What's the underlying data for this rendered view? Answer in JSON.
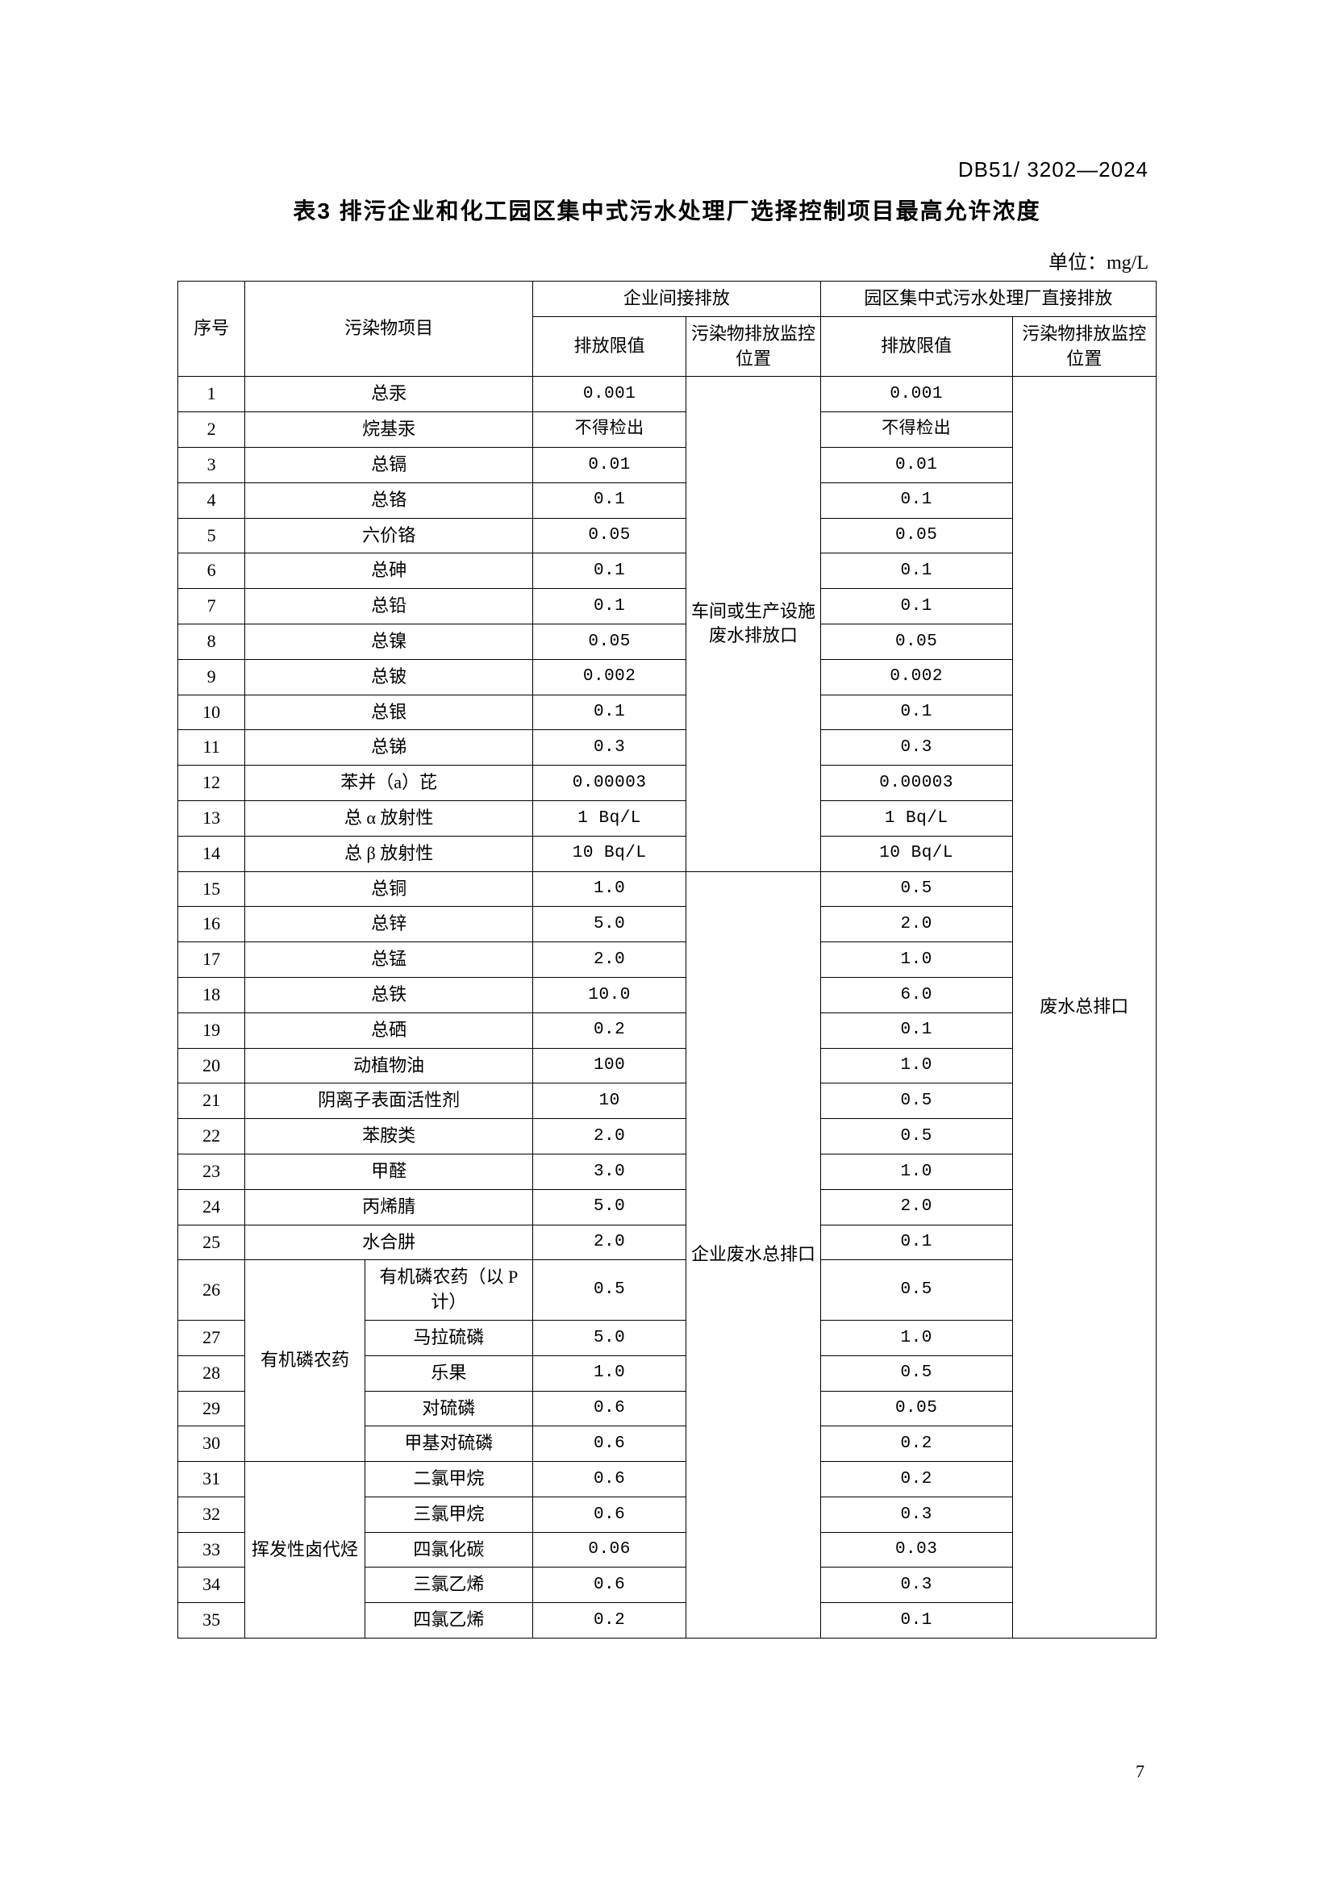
{
  "doc_id": "DB51/ 3202—2024",
  "title": "表3 排污企业和化工园区集中式污水处理厂选择控制项目最高允许浓度",
  "unit_label": "单位：mg/L",
  "page_number": "7",
  "headers": {
    "seq": "序号",
    "item": "污染物项目",
    "group1": "企业间接排放",
    "group2": "园区集中式污水处理厂直接排放",
    "limit": "排放限值",
    "monitor": "污染物排放监控位置"
  },
  "monitor_pos_1a": "车间或生产设施废水排放口",
  "monitor_pos_1b": "企业废水总排口",
  "monitor_pos_2": "废水总排口",
  "group_labels": {
    "organo_p": "有机磷农药",
    "voc": "挥发性卤代烃"
  },
  "rows": [
    {
      "n": "1",
      "item": "总汞",
      "itemSpan": 2,
      "v1": "0.001",
      "v2": "0.001"
    },
    {
      "n": "2",
      "item": "烷基汞",
      "itemSpan": 2,
      "v1": "不得检出",
      "v2": "不得检出"
    },
    {
      "n": "3",
      "item": "总镉",
      "itemSpan": 2,
      "v1": "0.01",
      "v2": "0.01"
    },
    {
      "n": "4",
      "item": "总铬",
      "itemSpan": 2,
      "v1": "0.1",
      "v2": "0.1"
    },
    {
      "n": "5",
      "item": "六价铬",
      "itemSpan": 2,
      "v1": "0.05",
      "v2": "0.05"
    },
    {
      "n": "6",
      "item": "总砷",
      "itemSpan": 2,
      "v1": "0.1",
      "v2": "0.1"
    },
    {
      "n": "7",
      "item": "总铅",
      "itemSpan": 2,
      "v1": "0.1",
      "v2": "0.1"
    },
    {
      "n": "8",
      "item": "总镍",
      "itemSpan": 2,
      "v1": "0.05",
      "v2": "0.05"
    },
    {
      "n": "9",
      "item": "总铍",
      "itemSpan": 2,
      "v1": "0.002",
      "v2": "0.002"
    },
    {
      "n": "10",
      "item": "总银",
      "itemSpan": 2,
      "v1": "0.1",
      "v2": "0.1"
    },
    {
      "n": "11",
      "item": "总锑",
      "itemSpan": 2,
      "v1": "0.3",
      "v2": "0.3"
    },
    {
      "n": "12",
      "item": "苯并（a）芘",
      "itemSpan": 2,
      "v1": "0.00003",
      "v2": "0.00003"
    },
    {
      "n": "13",
      "item": "总 α 放射性",
      "itemSpan": 2,
      "v1": "1 Bq/L",
      "v2": "1 Bq/L"
    },
    {
      "n": "14",
      "item": "总 β 放射性",
      "itemSpan": 2,
      "v1": "10 Bq/L",
      "v2": "10 Bq/L"
    },
    {
      "n": "15",
      "item": "总铜",
      "itemSpan": 2,
      "v1": "1.0",
      "v2": "0.5"
    },
    {
      "n": "16",
      "item": "总锌",
      "itemSpan": 2,
      "v1": "5.0",
      "v2": "2.0"
    },
    {
      "n": "17",
      "item": "总锰",
      "itemSpan": 2,
      "v1": "2.0",
      "v2": "1.0"
    },
    {
      "n": "18",
      "item": "总铁",
      "itemSpan": 2,
      "v1": "10.0",
      "v2": "6.0"
    },
    {
      "n": "19",
      "item": "总硒",
      "itemSpan": 2,
      "v1": "0.2",
      "v2": "0.1"
    },
    {
      "n": "20",
      "item": "动植物油",
      "itemSpan": 2,
      "v1": "100",
      "v2": "1.0"
    },
    {
      "n": "21",
      "item": "阴离子表面活性剂",
      "itemSpan": 2,
      "v1": "10",
      "v2": "0.5"
    },
    {
      "n": "22",
      "item": "苯胺类",
      "itemSpan": 2,
      "v1": "2.0",
      "v2": "0.5"
    },
    {
      "n": "23",
      "item": "甲醛",
      "itemSpan": 2,
      "v1": "3.0",
      "v2": "1.0"
    },
    {
      "n": "24",
      "item": "丙烯腈",
      "itemSpan": 2,
      "v1": "5.0",
      "v2": "2.0"
    },
    {
      "n": "25",
      "item": "水合肼",
      "itemSpan": 2,
      "v1": "2.0",
      "v2": "0.1"
    },
    {
      "n": "26",
      "group": "organo_p",
      "groupRows": 5,
      "sub": "有机磷农药（以 P 计）",
      "v1": "0.5",
      "v2": "0.5"
    },
    {
      "n": "27",
      "sub": "马拉硫磷",
      "v1": "5.0",
      "v2": "1.0"
    },
    {
      "n": "28",
      "sub": "乐果",
      "v1": "1.0",
      "v2": "0.5"
    },
    {
      "n": "29",
      "sub": "对硫磷",
      "v1": "0.6",
      "v2": "0.05"
    },
    {
      "n": "30",
      "sub": "甲基对硫磷",
      "v1": "0.6",
      "v2": "0.2"
    },
    {
      "n": "31",
      "group": "voc",
      "groupRows": 5,
      "sub": "二氯甲烷",
      "v1": "0.6",
      "v2": "0.2"
    },
    {
      "n": "32",
      "sub": "三氯甲烷",
      "v1": "0.6",
      "v2": "0.3"
    },
    {
      "n": "33",
      "sub": "四氯化碳",
      "v1": "0.06",
      "v2": "0.03"
    },
    {
      "n": "34",
      "sub": "三氯乙烯",
      "v1": "0.6",
      "v2": "0.3"
    },
    {
      "n": "35",
      "sub": "四氯乙烯",
      "v1": "0.2",
      "v2": "0.1"
    }
  ]
}
